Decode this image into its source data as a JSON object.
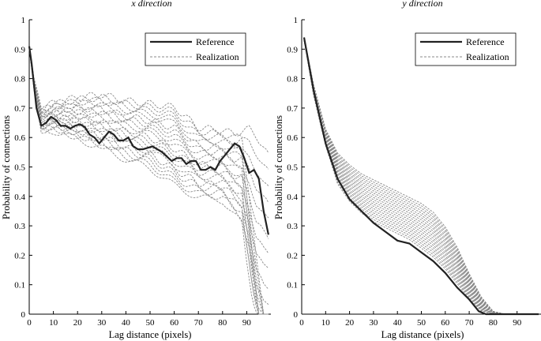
{
  "chart_data": [
    {
      "type": "line",
      "title": "x direction",
      "xlabel": "Lag distance (pixels)",
      "ylabel": "Probability of connections",
      "xlim": [
        0,
        100
      ],
      "ylim": [
        0,
        1
      ],
      "xticks": [
        "0",
        "10",
        "20",
        "30",
        "40",
        "50",
        "60",
        "70",
        "80",
        "90"
      ],
      "yticks": [
        "0",
        "0.1",
        "0.2",
        "0.3",
        "0.4",
        "0.5",
        "0.6",
        "0.7",
        "0.8",
        "0.9",
        "1"
      ],
      "legend": {
        "position": "top-right",
        "entries": [
          "Reference",
          "Realization"
        ]
      },
      "series": [
        {
          "name": "Reference",
          "style": "solid",
          "x": [
            0,
            1,
            3,
            5,
            7,
            9,
            11,
            13,
            15,
            17,
            19,
            21,
            23,
            25,
            27,
            29,
            31,
            33,
            35,
            37,
            39,
            41,
            43,
            45,
            47,
            49,
            51,
            53,
            55,
            57,
            59,
            61,
            63,
            65,
            67,
            69,
            71,
            73,
            75,
            77,
            79,
            81,
            83,
            85,
            87,
            89,
            91,
            93,
            95,
            97,
            99
          ],
          "y": [
            0.91,
            0.85,
            0.7,
            0.64,
            0.65,
            0.67,
            0.66,
            0.64,
            0.64,
            0.63,
            0.64,
            0.645,
            0.635,
            0.61,
            0.6,
            0.58,
            0.6,
            0.62,
            0.61,
            0.59,
            0.59,
            0.6,
            0.57,
            0.56,
            0.56,
            0.565,
            0.57,
            0.56,
            0.55,
            0.535,
            0.52,
            0.53,
            0.53,
            0.51,
            0.52,
            0.52,
            0.49,
            0.49,
            0.5,
            0.49,
            0.52,
            0.54,
            0.56,
            0.58,
            0.57,
            0.53,
            0.48,
            0.49,
            0.46,
            0.35,
            0.27
          ]
        },
        {
          "name": "Realization",
          "style": "dashed",
          "count": 20,
          "x": [
            0,
            2,
            5,
            10,
            20,
            30,
            40,
            50,
            60,
            70,
            80,
            85,
            88,
            91,
            94,
            97,
            99
          ],
          "y_low": [
            0.9,
            0.76,
            0.62,
            0.62,
            0.59,
            0.56,
            0.52,
            0.49,
            0.43,
            0.39,
            0.38,
            0.33,
            0.3,
            0.2,
            0.04,
            0.0,
            0.0
          ],
          "y_high": [
            0.91,
            0.8,
            0.7,
            0.72,
            0.74,
            0.75,
            0.73,
            0.72,
            0.71,
            0.64,
            0.63,
            0.62,
            0.63,
            0.64,
            0.62,
            0.58,
            0.55
          ]
        }
      ]
    },
    {
      "type": "line",
      "title": "y direction",
      "xlabel": "Lag distance (pixels)",
      "ylabel": "Probability of connections",
      "xlim": [
        0,
        100
      ],
      "ylim": [
        0,
        1
      ],
      "xticks": [
        "0",
        "10",
        "20",
        "30",
        "40",
        "50",
        "60",
        "70",
        "80",
        "90"
      ],
      "yticks": [
        "0",
        "0.1",
        "0.2",
        "0.3",
        "0.4",
        "0.5",
        "0.6",
        "0.7",
        "0.8",
        "0.9",
        "1"
      ],
      "legend": {
        "position": "top-right",
        "entries": [
          "Reference",
          "Realization"
        ]
      },
      "series": [
        {
          "name": "Reference",
          "style": "solid",
          "x": [
            1,
            5,
            10,
            15,
            20,
            25,
            30,
            35,
            40,
            45,
            50,
            55,
            60,
            65,
            70,
            74,
            77,
            80,
            85,
            99
          ],
          "y": [
            0.94,
            0.76,
            0.58,
            0.46,
            0.39,
            0.35,
            0.31,
            0.28,
            0.25,
            0.24,
            0.21,
            0.18,
            0.14,
            0.09,
            0.05,
            0.01,
            0.0,
            0.0,
            0.0,
            0.0
          ],
          "y_max_realization_band": 0.0
        },
        {
          "name": "Realization",
          "style": "dashed",
          "count": 20,
          "x": [
            1,
            5,
            10,
            15,
            20,
            25,
            30,
            35,
            40,
            45,
            50,
            55,
            60,
            65,
            70,
            75,
            80,
            85,
            99
          ],
          "y_low": [
            0.93,
            0.74,
            0.57,
            0.44,
            0.38,
            0.34,
            0.31,
            0.29,
            0.27,
            0.25,
            0.22,
            0.19,
            0.15,
            0.1,
            0.05,
            0.01,
            0.0,
            0.0,
            0.0
          ],
          "y_high": [
            0.94,
            0.78,
            0.63,
            0.55,
            0.51,
            0.48,
            0.46,
            0.44,
            0.42,
            0.4,
            0.38,
            0.35,
            0.3,
            0.23,
            0.14,
            0.06,
            0.01,
            0.0,
            0.0
          ]
        }
      ]
    }
  ]
}
